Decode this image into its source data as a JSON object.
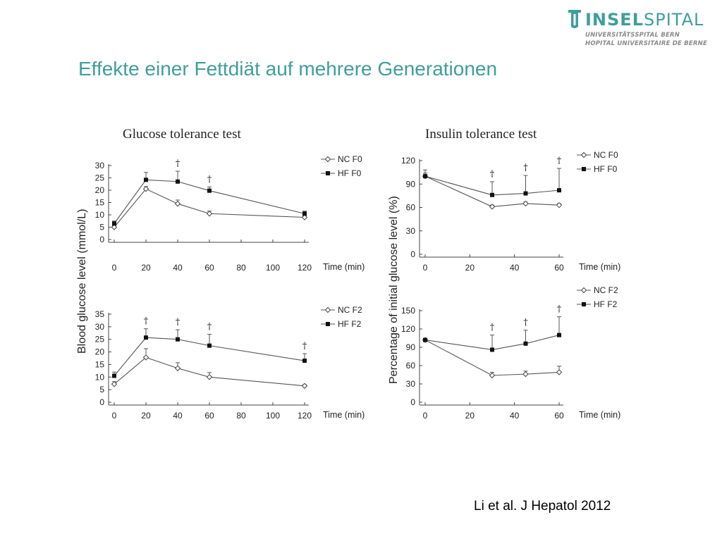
{
  "logo": {
    "name_bold": "INSEL",
    "name_light": "SPITAL",
    "line1": "UNIVERSITÄTSSPITAL BERN",
    "line2": "HOPITAL UNIVERSITAIRE DE BERNE",
    "color": "#3f9e9b"
  },
  "slide_title": "Effekte einer Fettdiät auf mehrere Generationen",
  "citation": "Li et al. J Hepatol 2012",
  "section_titles": {
    "gtt": "Glucose tolerance test",
    "itt": "Insulin tolerance test"
  },
  "shared_ylabels": {
    "gtt": "Blood glucose level (mmol/L)",
    "itt": "Percentage of initial glucose level (%)"
  },
  "chart_data": [
    {
      "type": "line",
      "panel": "gtt-f0",
      "xlabel": "Time (min)",
      "x": [
        0,
        20,
        40,
        60,
        120
      ],
      "xticks": [
        "0",
        "20",
        "40",
        "60",
        "80",
        "100",
        "120"
      ],
      "xlim": [
        0,
        120
      ],
      "ylim": [
        0,
        30
      ],
      "yticks": [
        "0",
        "5",
        "10",
        "15",
        "20",
        "25",
        "30"
      ],
      "significance_marker": "†",
      "significant_x": [
        40,
        60
      ],
      "series": [
        {
          "name": "NC F0",
          "marker": "open-diamond",
          "values": [
            5,
            20.5,
            14.5,
            10.5,
            9
          ],
          "errors": [
            0.6,
            1.0,
            1.5,
            1.0,
            0.6
          ]
        },
        {
          "name": "HF F0",
          "marker": "filled-square",
          "values": [
            6.5,
            24.2,
            23.5,
            19.8,
            10.5
          ],
          "errors": [
            1.0,
            3.0,
            4.2,
            1.5,
            1.0
          ]
        }
      ]
    },
    {
      "type": "line",
      "panel": "gtt-f2",
      "xlabel": "Time (min)",
      "x": [
        0,
        20,
        40,
        60,
        120
      ],
      "xticks": [
        "0",
        "20",
        "40",
        "60",
        "80",
        "100",
        "120"
      ],
      "xlim": [
        0,
        120
      ],
      "ylim": [
        0,
        35
      ],
      "yticks": [
        "0",
        "5",
        "10",
        "15",
        "20",
        "25",
        "30",
        "35"
      ],
      "significance_marker": "†",
      "significant_x": [
        20,
        40,
        60,
        120
      ],
      "series": [
        {
          "name": "NC F2",
          "marker": "open-diamond",
          "values": [
            7.2,
            17.8,
            13.5,
            10,
            6.5
          ],
          "errors": [
            1.0,
            3.5,
            2.2,
            1.8,
            0.5
          ]
        },
        {
          "name": "HF F2",
          "marker": "filled-square",
          "values": [
            10.5,
            25.7,
            25,
            22.5,
            16.5
          ],
          "errors": [
            1.5,
            3.5,
            3.8,
            4.5,
            2.8
          ]
        }
      ]
    },
    {
      "type": "line",
      "panel": "itt-f0",
      "xlabel": "Time (min)",
      "x": [
        0,
        30,
        45,
        60
      ],
      "xticks": [
        "0",
        "20",
        "40",
        "60"
      ],
      "xlim": [
        0,
        60
      ],
      "ylim": [
        0,
        120
      ],
      "yticks": [
        "0",
        "30",
        "60",
        "90",
        "120"
      ],
      "significance_marker": "†",
      "significant_x": [
        30,
        45,
        60
      ],
      "series": [
        {
          "name": "NC F0",
          "marker": "open-diamond",
          "values": [
            100,
            61,
            65,
            63
          ],
          "errors": [
            4,
            2,
            2,
            2
          ]
        },
        {
          "name": "HF F0",
          "marker": "filled-square",
          "values": [
            100,
            76,
            78,
            82
          ],
          "errors": [
            8,
            17,
            23,
            28
          ]
        }
      ]
    },
    {
      "type": "line",
      "panel": "itt-f2",
      "xlabel": "Time (min)",
      "x": [
        0,
        30,
        45,
        60
      ],
      "xticks": [
        "0",
        "20",
        "40",
        "60"
      ],
      "xlim": [
        0,
        60
      ],
      "ylim": [
        0,
        150
      ],
      "yticks": [
        "0",
        "30",
        "60",
        "90",
        "120",
        "150"
      ],
      "significance_marker": "†",
      "significant_x": [
        30,
        45,
        60
      ],
      "series": [
        {
          "name": "NC F2",
          "marker": "open-diamond",
          "values": [
            102,
            44,
            46,
            49
          ],
          "errors": [
            3,
            5,
            5,
            10
          ]
        },
        {
          "name": "HF F2",
          "marker": "filled-square",
          "values": [
            102,
            86,
            96,
            110
          ],
          "errors": [
            3,
            24,
            22,
            30
          ]
        }
      ]
    }
  ]
}
